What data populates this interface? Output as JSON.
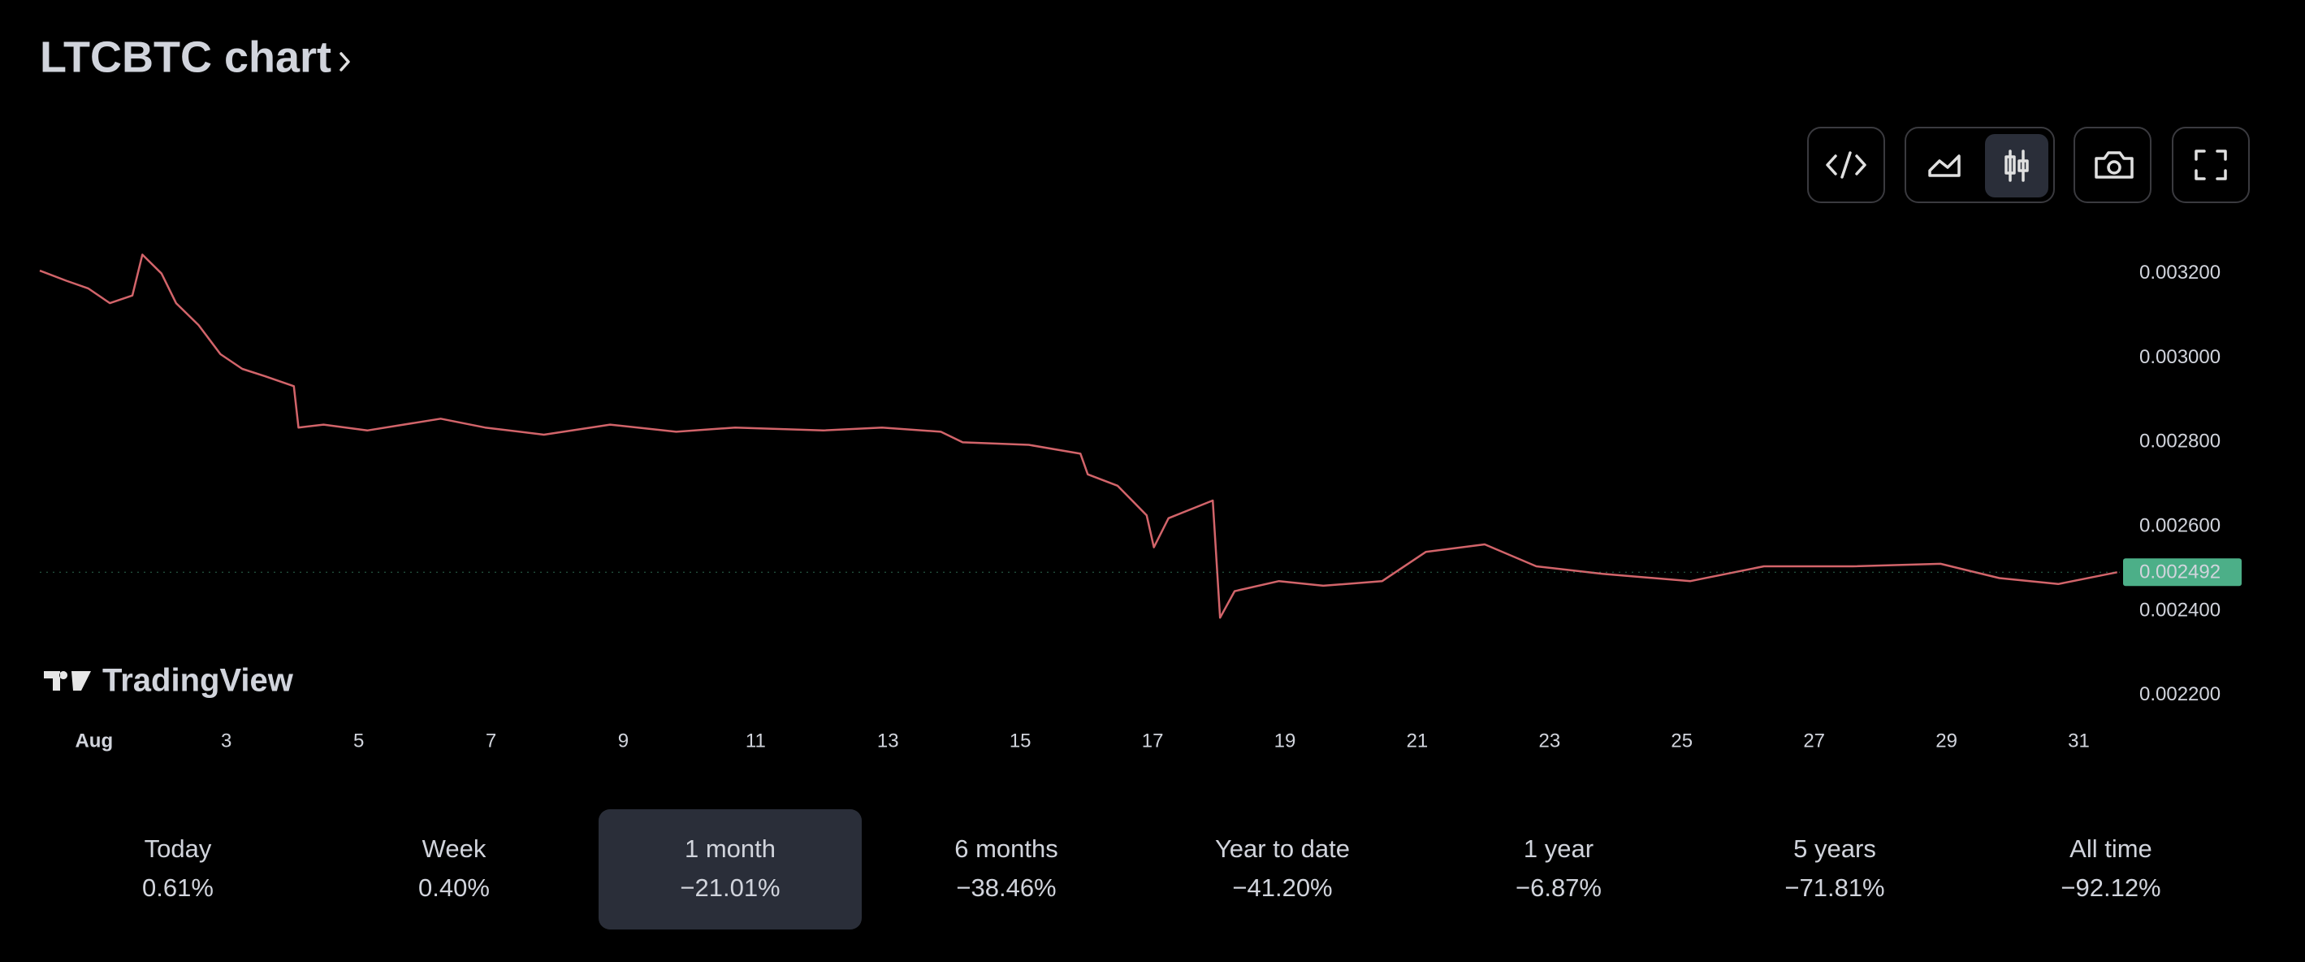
{
  "header": {
    "title": "LTCBTC chart"
  },
  "chart_data": {
    "type": "line",
    "watermark": "TradingView",
    "color": "#d2646a",
    "grid": false,
    "x": [
      0.18,
      0.58,
      0.91,
      1.24,
      1.58,
      1.73,
      2.02,
      2.24,
      2.58,
      2.91,
      3.24,
      3.58,
      4.02,
      4.09,
      4.47,
      5.13,
      6.24,
      6.91,
      7.8,
      8.8,
      9.8,
      10.69,
      12.02,
      12.91,
      13.8,
      14.13,
      15.13,
      15.91,
      16.02,
      16.47,
      16.91,
      17.02,
      17.24,
      17.91,
      18.02,
      18.24,
      18.91,
      19.58,
      20.47,
      21.13,
      22.02,
      22.8,
      23.8,
      25.13,
      26.24,
      27.58,
      28.91,
      29.8,
      30.69,
      31.58
    ],
    "values": [
      0.003207,
      0.003183,
      0.003165,
      0.00313,
      0.003148,
      0.003245,
      0.0032,
      0.00313,
      0.003078,
      0.003009,
      0.002974,
      0.002957,
      0.002933,
      0.002835,
      0.002842,
      0.002828,
      0.002856,
      0.002835,
      0.002818,
      0.002842,
      0.002825,
      0.002835,
      0.002828,
      0.002835,
      0.002825,
      0.0028,
      0.002794,
      0.002773,
      0.002724,
      0.002697,
      0.002627,
      0.002551,
      0.00262,
      0.002662,
      0.002384,
      0.002447,
      0.002471,
      0.00246,
      0.002471,
      0.00254,
      0.002558,
      0.002506,
      0.002488,
      0.002471,
      0.002506,
      0.002506,
      0.002512,
      0.002478,
      0.002464,
      0.002492
    ],
    "xlim": [
      0.18,
      31.62
    ],
    "xticks": [
      {
        "value": 1,
        "label": "Aug"
      },
      3,
      5,
      7,
      9,
      11,
      13,
      15,
      17,
      19,
      21,
      23,
      25,
      27,
      29,
      31
    ],
    "ylim": [
      0.00214,
      0.00329
    ],
    "yticks": [
      {
        "value": 0.0022,
        "label": "0.002200"
      },
      {
        "value": 0.0024,
        "label": "0.002400"
      },
      {
        "value": 0.0026,
        "label": "0.002600"
      },
      {
        "value": 0.0028,
        "label": "0.002800"
      },
      {
        "value": 0.003,
        "label": "0.003000"
      },
      {
        "value": 0.0032,
        "label": "0.003200"
      }
    ],
    "last_price": {
      "value": 0.002492,
      "label": "0.002492"
    }
  },
  "periods": [
    {
      "label": "Today",
      "change": "0.61%"
    },
    {
      "label": "Week",
      "change": "0.40%"
    },
    {
      "label": "1 month",
      "change": "−21.01%"
    },
    {
      "label": "6 months",
      "change": "−38.46%"
    },
    {
      "label": "Year to date",
      "change": "−41.20%"
    },
    {
      "label": "1 year",
      "change": "−6.87%"
    },
    {
      "label": "5 years",
      "change": "−71.81%"
    },
    {
      "label": "All time",
      "change": "−92.12%"
    }
  ]
}
